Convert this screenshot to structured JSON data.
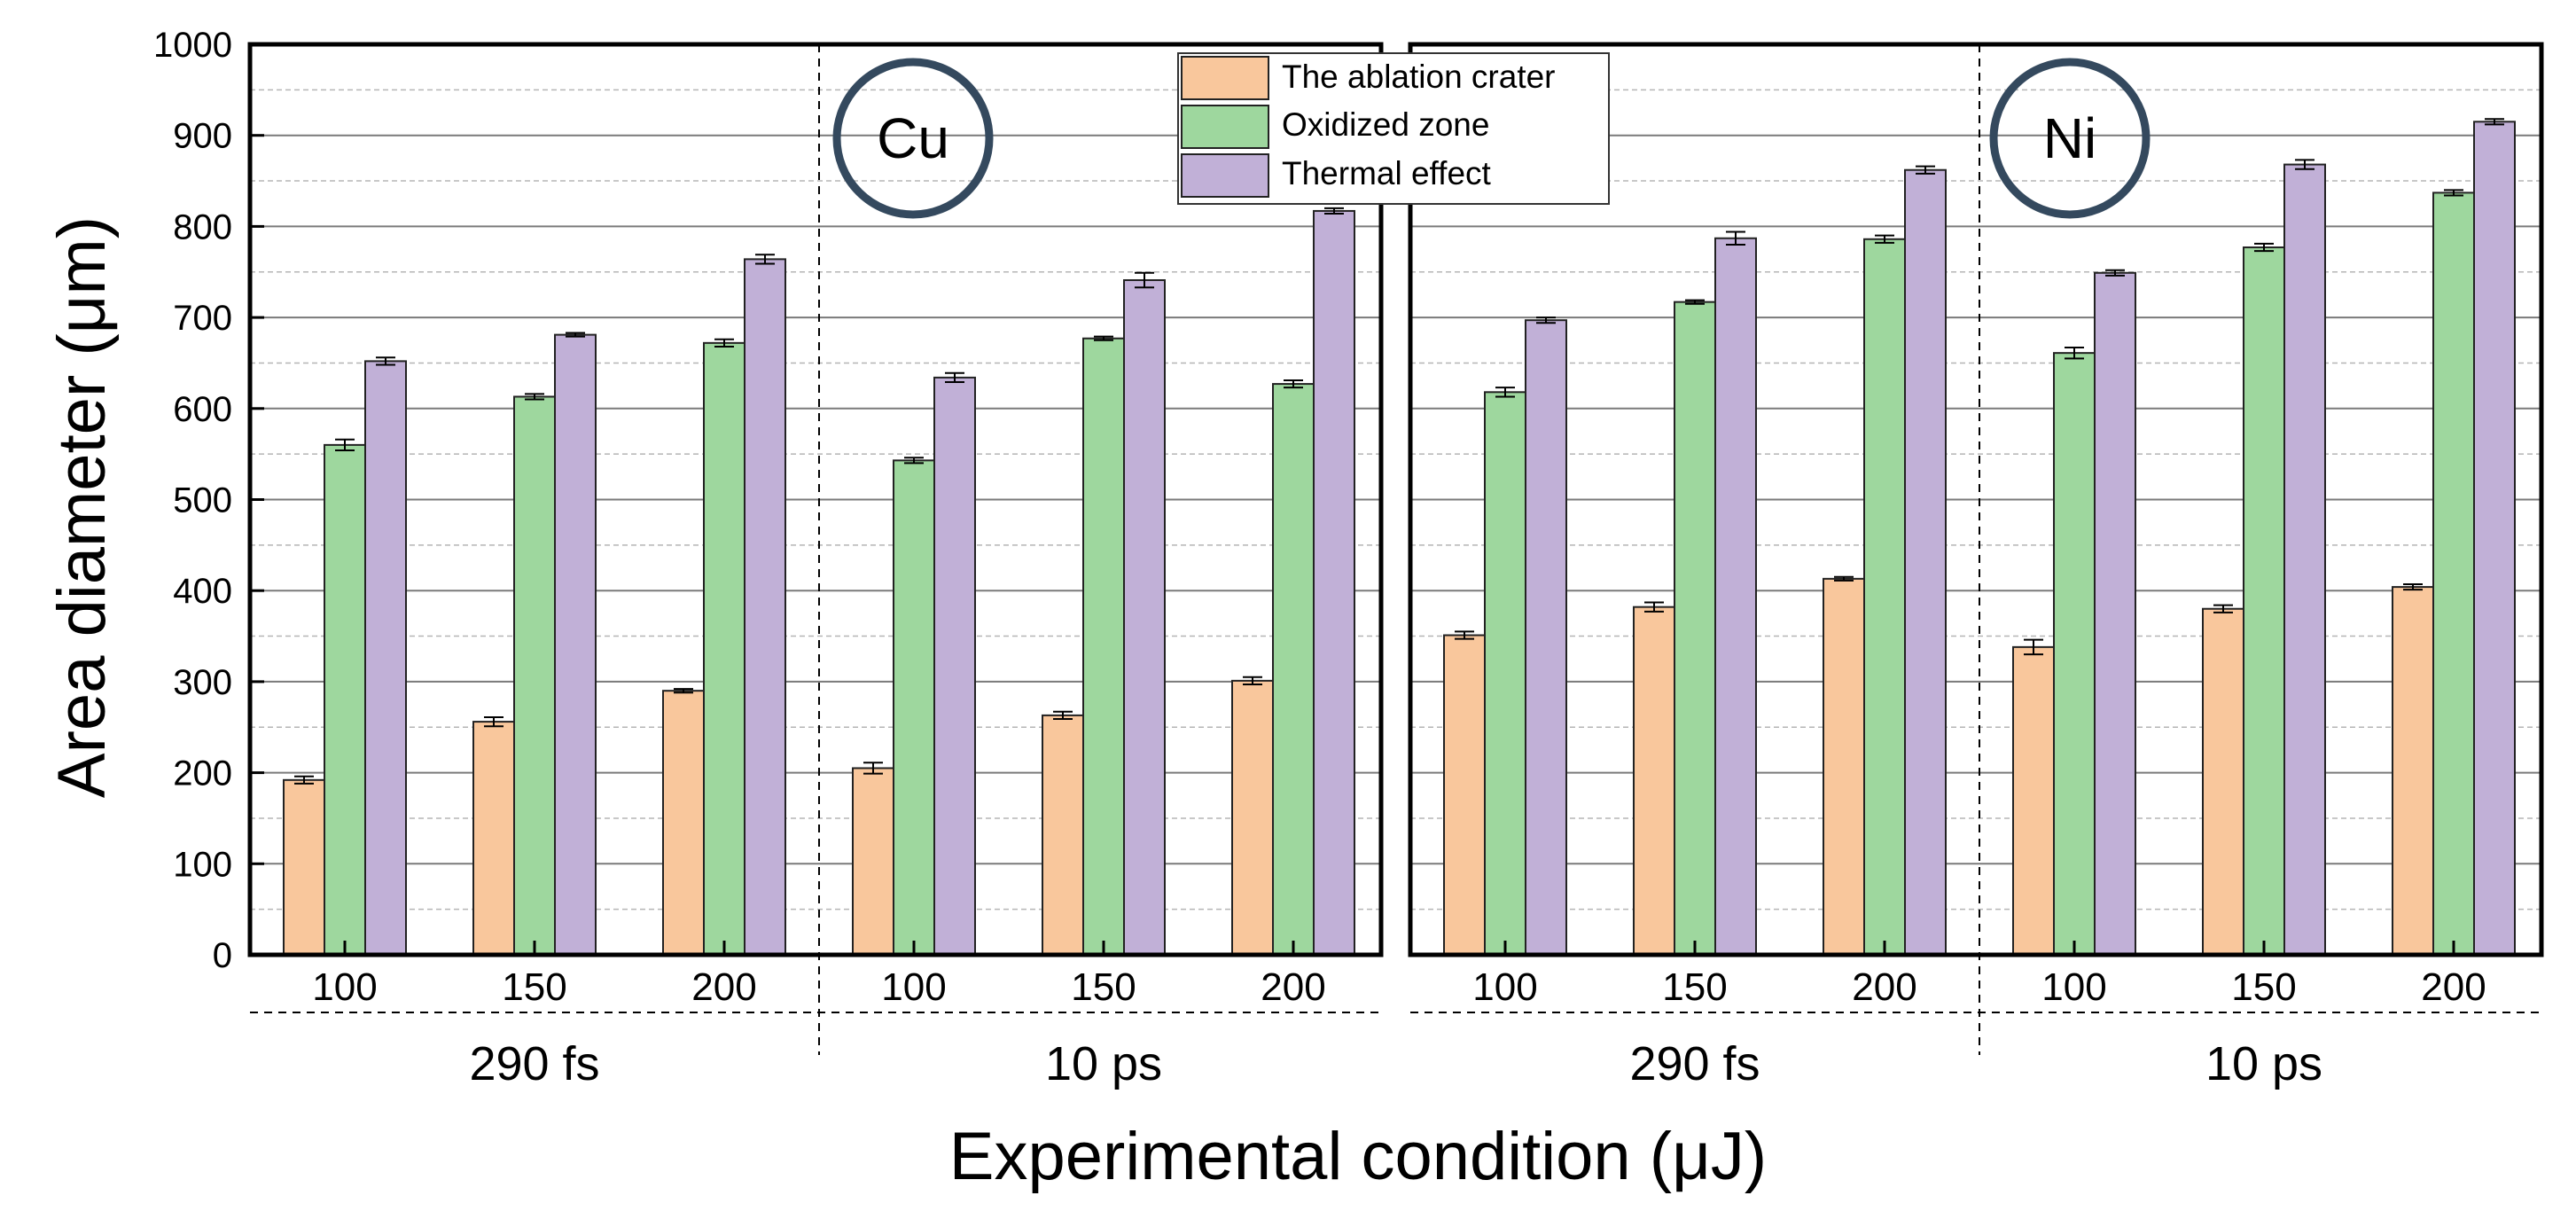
{
  "colors": {
    "crater": "#f9c79c",
    "oxidized": "#9ed79e",
    "thermal": "#c1b0d7",
    "grid_major": "#7a7a7a",
    "grid_minor": "#b5b5b5",
    "frame": "#000000",
    "circle": "#34495e"
  },
  "chart_data": {
    "type": "bar",
    "ylabel": "Area diameter (μm)",
    "xlabel": "Experimental condition (μJ)",
    "ylim": [
      0,
      1000
    ],
    "yticks": [
      0,
      100,
      200,
      300,
      400,
      500,
      600,
      700,
      800,
      900,
      1000
    ],
    "ytick_labels": [
      "0",
      "100",
      "200",
      "300",
      "400",
      "500",
      "600",
      "700",
      "800",
      "900",
      "1000"
    ],
    "minor_grid_step": 50,
    "legend": {
      "placement": "top-center",
      "entries": [
        "The ablation crater",
        "Oxidized zone",
        "Thermal effect"
      ]
    },
    "series_names": [
      "The ablation crater",
      "Oxidized zone",
      "Thermal effect"
    ],
    "panels": [
      {
        "label": "Cu",
        "groups": [
          {
            "name": "290 fs",
            "categories": [
              "100",
              "150",
              "200"
            ],
            "values": [
              [
                192,
                560,
                652
              ],
              [
                256,
                613,
                681
              ],
              [
                290,
                672,
                764
              ]
            ],
            "errors": [
              [
                4,
                6,
                4
              ],
              [
                5,
                3,
                2
              ],
              [
                2,
                4,
                5
              ]
            ]
          },
          {
            "name": "10 ps",
            "categories": [
              "100",
              "150",
              "200"
            ],
            "values": [
              [
                205,
                543,
                634
              ],
              [
                263,
                677,
                741
              ],
              [
                301,
                627,
                817
              ]
            ],
            "errors": [
              [
                6,
                3,
                5
              ],
              [
                4,
                2,
                8
              ],
              [
                4,
                4,
                3
              ]
            ]
          }
        ]
      },
      {
        "label": "Ni",
        "groups": [
          {
            "name": "290 fs",
            "categories": [
              "100",
              "150",
              "200"
            ],
            "values": [
              [
                351,
                618,
                697
              ],
              [
                382,
                717,
                787
              ],
              [
                413,
                786,
                862
              ]
            ],
            "errors": [
              [
                4,
                5,
                3
              ],
              [
                5,
                2,
                7
              ],
              [
                2,
                4,
                4
              ]
            ]
          },
          {
            "name": "10 ps",
            "categories": [
              "100",
              "150",
              "200"
            ],
            "values": [
              [
                338,
                661,
                749
              ],
              [
                380,
                777,
                868
              ],
              [
                404,
                837,
                915
              ]
            ],
            "errors": [
              [
                8,
                6,
                3
              ],
              [
                4,
                4,
                5
              ],
              [
                3,
                3,
                3
              ]
            ]
          }
        ]
      }
    ]
  }
}
